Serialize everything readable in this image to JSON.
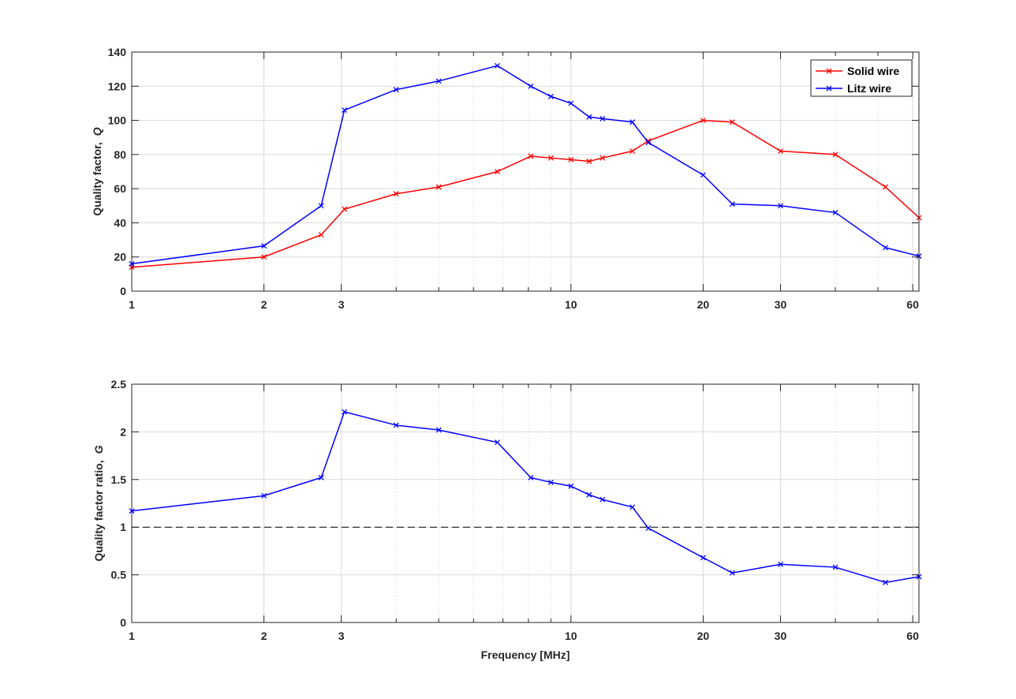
{
  "colors": {
    "solid_wire": "#ff0000",
    "litz_wire": "#0000ff",
    "reference_line": "#000000",
    "grid": "#d9d9d9",
    "axis": "#262626"
  },
  "chart_data": [
    {
      "type": "line",
      "xlabel": "",
      "ylabel": "Quality factor,",
      "ylabel_symbol": "Q",
      "xscale": "log",
      "xlim": [
        1,
        62
      ],
      "ylim": [
        0,
        140
      ],
      "xticks": [
        1,
        2,
        3,
        10,
        20,
        30,
        60
      ],
      "xtick_labels": [
        "1",
        "2",
        "3",
        "10",
        "20",
        "30",
        "60"
      ],
      "yticks": [
        0,
        20,
        40,
        60,
        80,
        100,
        120,
        140
      ],
      "ytick_labels": [
        "0",
        "20",
        "40",
        "60",
        "80",
        "100",
        "120",
        "140"
      ],
      "grid": true,
      "legend": "top-right",
      "marker": "x",
      "series": [
        {
          "name": "Solid wire",
          "color": "#ff0000",
          "x": [
            1,
            2,
            2.7,
            3.05,
            4,
            5,
            6.8,
            8.1,
            9,
            10,
            11,
            11.8,
            13.8,
            15,
            20,
            23.3,
            30,
            40,
            52,
            62
          ],
          "y": [
            14,
            20,
            33,
            48,
            57,
            61,
            70,
            79,
            78,
            77,
            76,
            78,
            82,
            88,
            100,
            99,
            82,
            80,
            61,
            43
          ]
        },
        {
          "name": "Litz wire",
          "color": "#0000ff",
          "x": [
            1,
            2,
            2.7,
            3.05,
            4,
            5,
            6.8,
            8.1,
            9,
            10,
            11,
            11.8,
            13.8,
            15,
            20,
            23.3,
            30,
            40,
            52,
            62
          ],
          "y": [
            16,
            26.5,
            50,
            106,
            118,
            123,
            132,
            120,
            114,
            110,
            102,
            101,
            99,
            87,
            68,
            51,
            50,
            46,
            25.5,
            20.5
          ]
        }
      ]
    },
    {
      "type": "line",
      "xlabel": "Frequency [MHz]",
      "ylabel": "Quality factor ratio,",
      "ylabel_symbol": "G",
      "xscale": "log",
      "xlim": [
        1,
        62
      ],
      "ylim": [
        0,
        2.5
      ],
      "xticks": [
        1,
        2,
        3,
        10,
        20,
        30,
        60
      ],
      "xtick_labels": [
        "1",
        "2",
        "3",
        "10",
        "20",
        "30",
        "60"
      ],
      "yticks": [
        0,
        0.5,
        1,
        1.5,
        2,
        2.5
      ],
      "ytick_labels": [
        "0",
        "0.5",
        "1",
        "1.5",
        "2",
        "2.5"
      ],
      "grid": true,
      "marker": "x",
      "reference_line": {
        "y": 1,
        "style": "dashed"
      },
      "series": [
        {
          "color": "#0000ff",
          "x": [
            1,
            2,
            2.7,
            3.05,
            4,
            5,
            6.8,
            8.1,
            9,
            10,
            11,
            11.8,
            13.8,
            15,
            20,
            23.3,
            30,
            40,
            52,
            62
          ],
          "y": [
            1.17,
            1.33,
            1.52,
            2.21,
            2.07,
            2.02,
            1.89,
            1.52,
            1.47,
            1.43,
            1.34,
            1.29,
            1.21,
            0.99,
            0.68,
            0.52,
            0.61,
            0.58,
            0.42,
            0.48
          ]
        }
      ]
    }
  ]
}
